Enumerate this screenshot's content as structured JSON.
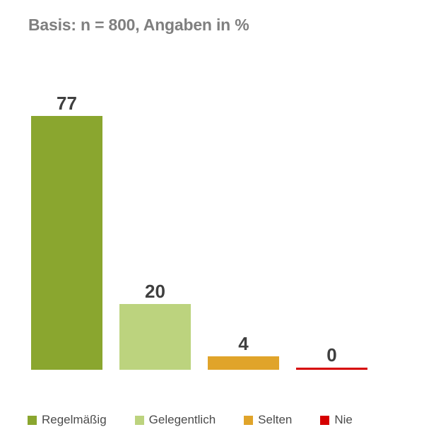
{
  "chart_data": {
    "type": "bar",
    "title": "Basis: n = 800, Angaben in %",
    "categories": [
      "Regelmäßig",
      "Gelegentlich",
      "Selten",
      "Nie"
    ],
    "values": [
      77,
      20,
      4,
      0
    ],
    "colors": [
      "#8AA62F",
      "#BCD37E",
      "#E0A42A",
      "#D60000"
    ],
    "title_color": "#7F7F7F",
    "value_label_color": "#3F3F3F",
    "legend_text_color": "#4B4B4B",
    "background": "#FFFFFF",
    "xlabel": "",
    "ylabel": "",
    "ylim": [
      0,
      80
    ],
    "grid": false,
    "axes_visible": false,
    "legend_position": "bottom"
  }
}
